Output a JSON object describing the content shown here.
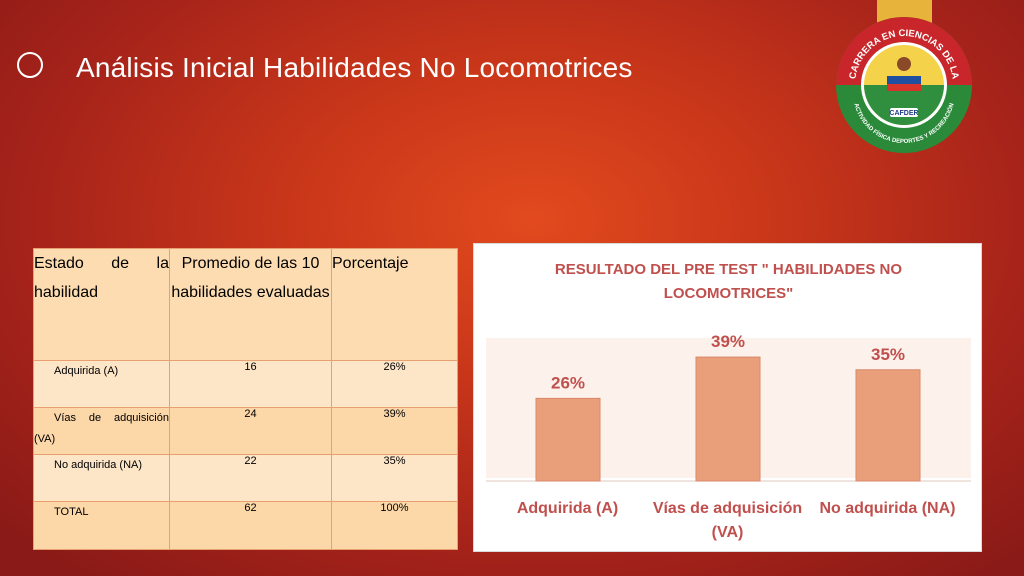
{
  "slide": {
    "title": "Análisis Inicial Habilidades No Locomotrices"
  },
  "logo": {
    "top_text": "CARRERA EN CIENCIAS DE LA",
    "bottom_text": "ACTIVIDAD FÍSICA DEPORTES Y RECREACIÓN",
    "badge": "CAFDER"
  },
  "table": {
    "headers": [
      "Estado de la habilidad",
      "Promedio de las 10 habilidades evaluadas",
      "Porcentaje"
    ],
    "rows": [
      {
        "label": "Adquirida (A)",
        "avg": "16",
        "pct": "26%"
      },
      {
        "label": "Vías de adquisición (VA)",
        "avg": "24",
        "pct": "39%"
      },
      {
        "label": "No adquirida (NA)",
        "avg": "22",
        "pct": "35%"
      },
      {
        "label": "TOTAL",
        "avg": "62",
        "pct": "100%"
      }
    ]
  },
  "chart_data": {
    "type": "bar",
    "title": "RESULTADO DEL PRE TEST \" HABILIDADES NO LOCOMOTRICES\"",
    "title_lines": [
      "RESULTADO DEL PRE TEST \" HABILIDADES NO",
      "LOCOMOTRICES\""
    ],
    "categories": [
      "Adquirida (A)",
      "Vías de adquisición (VA)",
      "No adquirida (NA)"
    ],
    "category_lines": [
      [
        "Adquirida (A)"
      ],
      [
        "Vías de adquisición",
        "(VA)"
      ],
      [
        "No adquirida (NA)"
      ]
    ],
    "values": [
      26,
      39,
      35
    ],
    "labels": [
      "26%",
      "39%",
      "35%"
    ],
    "ylim": [
      0,
      45
    ],
    "grid": false,
    "colors": {
      "bar": "#e9a07a",
      "bar_border": "#d9876a",
      "text": "#c0504d",
      "plot_bg": "#fdf1eb"
    }
  }
}
